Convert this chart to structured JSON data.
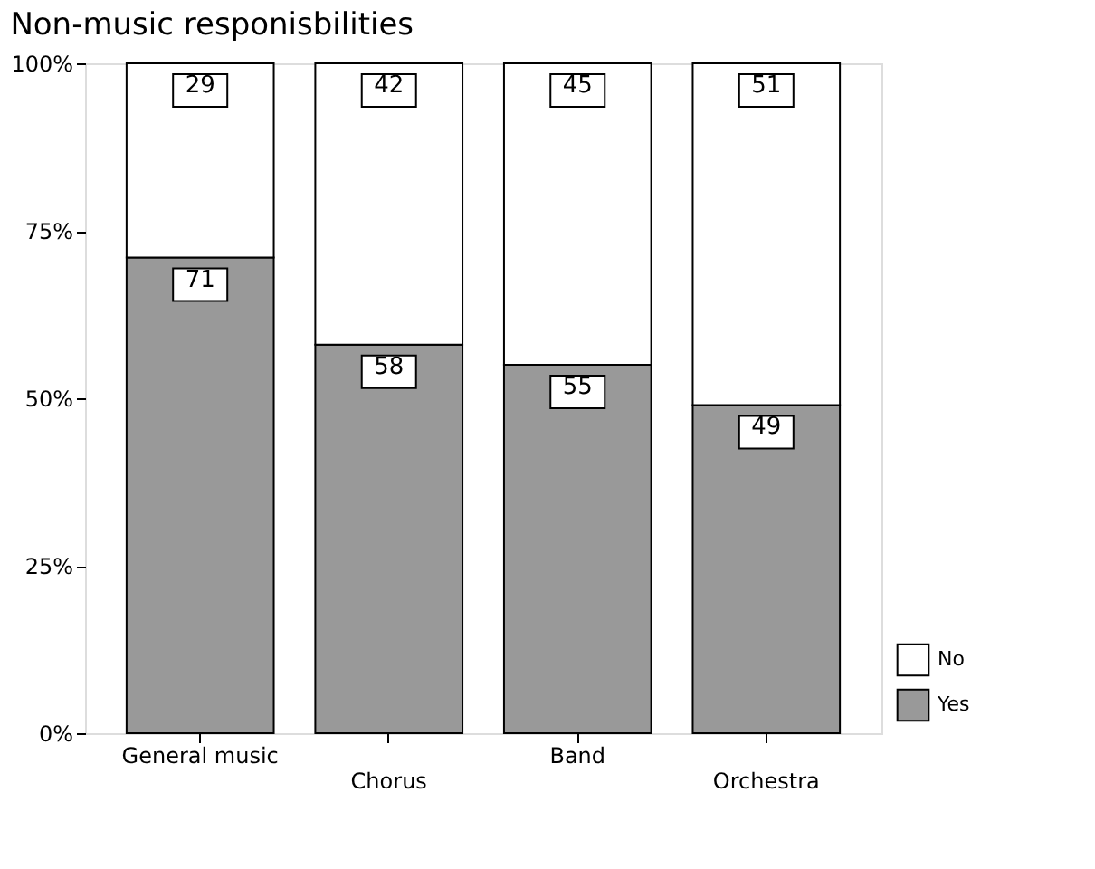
{
  "chart_data": {
    "type": "bar",
    "title": "Non-music responisbilities",
    "stacked": true,
    "categories": [
      "General music",
      "Chorus",
      "Band",
      "Orchestra"
    ],
    "series": [
      {
        "name": "Yes",
        "color": "#999999",
        "values": [
          71,
          58,
          55,
          49
        ]
      },
      {
        "name": "No",
        "color": "#ffffff",
        "values": [
          29,
          42,
          45,
          51
        ]
      }
    ],
    "ylim": [
      0,
      100
    ],
    "yticks": [
      {
        "value": 0,
        "label": "0%"
      },
      {
        "value": 25,
        "label": "25%"
      },
      {
        "value": 50,
        "label": "50%"
      },
      {
        "value": 75,
        "label": "75%"
      },
      {
        "value": 100,
        "label": "100%"
      }
    ],
    "data_labels": true,
    "legend": "bottom right",
    "grid": false
  }
}
